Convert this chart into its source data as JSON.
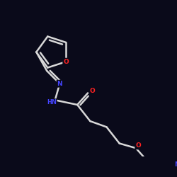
{
  "background_color": "#0a0a1a",
  "bond_color": "#d8d8d8",
  "atom_colors": {
    "N": "#4444ff",
    "O": "#ff2222",
    "C": "#d8d8d8"
  },
  "bond_width": 1.8,
  "font_size_atom": 6.5,
  "figsize": [
    2.5,
    2.5
  ],
  "dpi": 100
}
